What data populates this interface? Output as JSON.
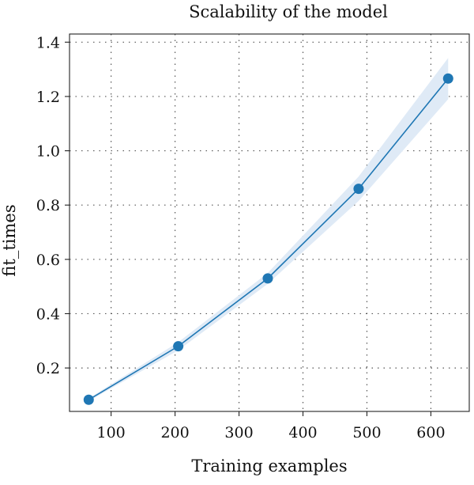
{
  "chart_data": {
    "type": "line",
    "title": "Scalability of the model",
    "xlabel": "Training examples",
    "ylabel": "fit_times",
    "xlim": [
      35,
      660
    ],
    "ylim": [
      0.04,
      1.43
    ],
    "xticks": [
      100,
      200,
      300,
      400,
      500,
      600
    ],
    "yticks": [
      0.2,
      0.4,
      0.6,
      0.8,
      1.0,
      1.2,
      1.4
    ],
    "xtick_labels": [
      "100",
      "200",
      "300",
      "400",
      "500",
      "600"
    ],
    "ytick_labels": [
      "0.2",
      "0.4",
      "0.6",
      "0.8",
      "1.0",
      "1.2",
      "1.4"
    ],
    "grid": true,
    "series": [
      {
        "x": [
          65,
          205,
          345,
          487,
          627
        ],
        "y": [
          0.083,
          0.28,
          0.53,
          0.86,
          1.266
        ],
        "y_lower": [
          0.078,
          0.265,
          0.51,
          0.815,
          1.19
        ],
        "y_upper": [
          0.088,
          0.295,
          0.55,
          0.905,
          1.342
        ],
        "color": "#1f77b4",
        "band_color": "#dfeaf6"
      }
    ]
  }
}
